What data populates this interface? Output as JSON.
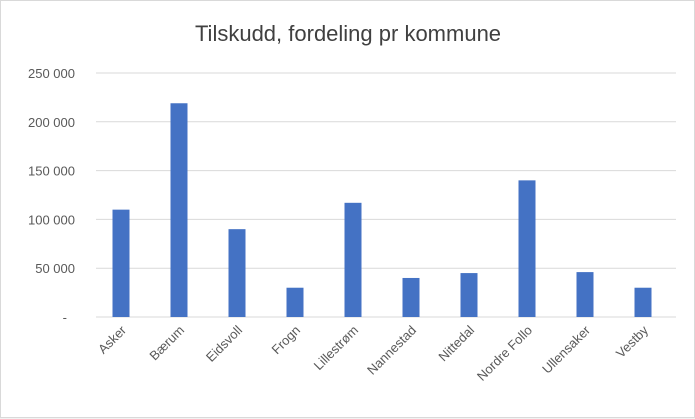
{
  "chart_data": {
    "type": "bar",
    "title": "Tilskudd, fordeling pr kommune",
    "xlabel": "",
    "ylabel": "",
    "categories": [
      "Asker",
      "Bærum",
      "Eidsvoll",
      "Frogn",
      "Lillestrøm",
      "Nannestad",
      "Nittedal",
      "Nordre Follo",
      "Ullensaker",
      "Vestby"
    ],
    "values": [
      110000,
      219000,
      90000,
      30000,
      117000,
      40000,
      45000,
      140000,
      46000,
      30000
    ],
    "ylim": [
      0,
      250000
    ],
    "yticks": [
      0,
      50000,
      100000,
      150000,
      200000,
      250000
    ],
    "ytick_labels": [
      "-",
      "50 000",
      "100 000",
      "150 000",
      "200 000",
      "250 000"
    ],
    "grid": true,
    "legend": "none",
    "bar_color": "#4472c4"
  }
}
